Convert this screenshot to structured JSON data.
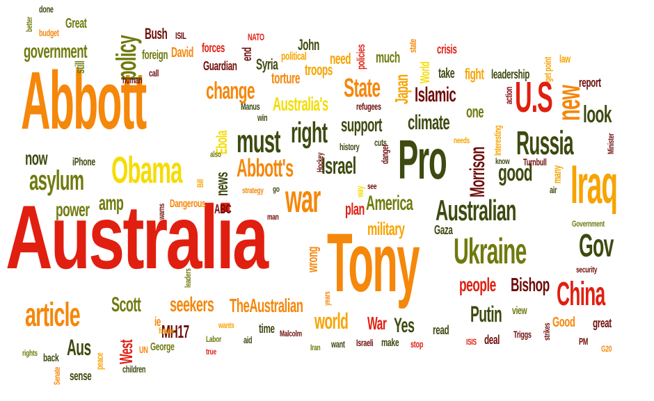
{
  "colors": {
    "red": "#e01f10",
    "dark_red": "#8a0a10",
    "maroon": "#6e0d0a",
    "orange": "#f5870a",
    "yellow_orange": "#f7a300",
    "yellow": "#f5dc00",
    "olive": "#6f7a0e",
    "dark_olive": "#3d4a10",
    "background": "#ffffff"
  },
  "words": [
    {
      "text": "Australia",
      "color": "red"
    },
    {
      "text": "Abbott",
      "color": "orange"
    },
    {
      "text": "Tony",
      "color": "orange"
    },
    {
      "text": "Pro",
      "color": "dark_olive"
    },
    {
      "text": "Ukraine",
      "color": "olive"
    },
    {
      "text": "Iraq",
      "color": "yellow_orange"
    },
    {
      "text": "Obama",
      "color": "yellow"
    },
    {
      "text": "war",
      "color": "orange"
    },
    {
      "text": "Australian",
      "color": "dark_olive"
    },
    {
      "text": "Russia",
      "color": "dark_olive"
    },
    {
      "text": "must",
      "color": "dark_olive"
    },
    {
      "text": "right",
      "color": "dark_olive"
    },
    {
      "text": "policy",
      "color": "olive"
    },
    {
      "text": "U.S",
      "color": "red"
    },
    {
      "text": "new",
      "color": "orange"
    },
    {
      "text": "Gov",
      "color": "dark_olive"
    },
    {
      "text": "China",
      "color": "red"
    },
    {
      "text": "article",
      "color": "orange"
    },
    {
      "text": "Israel",
      "color": "dark_olive"
    },
    {
      "text": "Abbott's",
      "color": "orange"
    },
    {
      "text": "change",
      "color": "orange"
    },
    {
      "text": "State",
      "color": "orange"
    },
    {
      "text": "asylum",
      "color": "olive"
    },
    {
      "text": "Morrison",
      "color": "maroon"
    },
    {
      "text": "good",
      "color": "dark_olive"
    },
    {
      "text": "climate",
      "color": "dark_olive"
    },
    {
      "text": "Islamic",
      "color": "maroon"
    },
    {
      "text": "America",
      "color": "olive"
    },
    {
      "text": "military",
      "color": "yellow_orange"
    },
    {
      "text": "Australia's",
      "color": "yellow"
    },
    {
      "text": "support",
      "color": "dark_olive"
    },
    {
      "text": "government",
      "color": "olive"
    },
    {
      "text": "Scott",
      "color": "olive"
    },
    {
      "text": "seekers",
      "color": "orange"
    },
    {
      "text": "TheAustralian",
      "color": "orange"
    },
    {
      "text": "world",
      "color": "yellow_orange"
    },
    {
      "text": "people",
      "color": "red"
    },
    {
      "text": "Bishop",
      "color": "maroon"
    },
    {
      "text": "Putin",
      "color": "dark_olive"
    },
    {
      "text": "look",
      "color": "dark_olive"
    },
    {
      "text": "power",
      "color": "olive"
    },
    {
      "text": "amp",
      "color": "olive"
    },
    {
      "text": "now",
      "color": "dark_olive"
    },
    {
      "text": "Aus",
      "color": "dark_olive"
    },
    {
      "text": "West",
      "color": "red"
    },
    {
      "text": "MH17",
      "color": "maroon"
    },
    {
      "text": "War",
      "color": "red"
    },
    {
      "text": "Yes",
      "color": "dark_olive"
    },
    {
      "text": "plan",
      "color": "red"
    },
    {
      "text": "Japan",
      "color": "yellow_orange"
    },
    {
      "text": "one",
      "color": "olive"
    },
    {
      "text": "fight",
      "color": "yellow_orange"
    },
    {
      "text": "Ebola",
      "color": "yellow"
    },
    {
      "text": "news",
      "color": "dark_olive"
    },
    {
      "text": "Bush",
      "color": "maroon"
    },
    {
      "text": "Great",
      "color": "olive"
    },
    {
      "text": "David",
      "color": "orange"
    },
    {
      "text": "John",
      "color": "dark_olive"
    },
    {
      "text": "Syria",
      "color": "dark_olive"
    },
    {
      "text": "torture",
      "color": "orange"
    },
    {
      "text": "troops",
      "color": "yellow_orange"
    },
    {
      "text": "need",
      "color": "yellow_orange"
    },
    {
      "text": "much",
      "color": "olive"
    },
    {
      "text": "crisis",
      "color": "red"
    },
    {
      "text": "take",
      "color": "dark_olive"
    },
    {
      "text": "leadership",
      "color": "dark_olive"
    },
    {
      "text": "report",
      "color": "maroon"
    },
    {
      "text": "still",
      "color": "olive"
    },
    {
      "text": "foreign",
      "color": "olive"
    },
    {
      "text": "Guardian",
      "color": "maroon"
    },
    {
      "text": "forces",
      "color": "red"
    },
    {
      "text": "end",
      "color": "maroon"
    },
    {
      "text": "political",
      "color": "yellow_orange"
    },
    {
      "text": "policies",
      "color": "red"
    },
    {
      "text": "state",
      "color": "orange"
    },
    {
      "text": "law",
      "color": "yellow_orange"
    },
    {
      "text": "get point",
      "color": "yellow_orange"
    },
    {
      "text": "World",
      "color": "yellow"
    },
    {
      "text": "action",
      "color": "dark_red"
    },
    {
      "text": "human",
      "color": "maroon"
    },
    {
      "text": "call",
      "color": "maroon"
    },
    {
      "text": "better",
      "color": "olive"
    },
    {
      "text": "budget",
      "color": "orange"
    },
    {
      "text": "done",
      "color": "dark_olive"
    },
    {
      "text": "ISIL",
      "color": "maroon"
    },
    {
      "text": "NATO",
      "color": "red"
    },
    {
      "text": "Manus",
      "color": "dark_olive"
    },
    {
      "text": "win",
      "color": "dark_olive"
    },
    {
      "text": "refugees",
      "color": "maroon"
    },
    {
      "text": "history",
      "color": "dark_olive"
    },
    {
      "text": "cuts",
      "color": "dark_olive"
    },
    {
      "text": "danger",
      "color": "maroon"
    },
    {
      "text": "Hockey",
      "color": "maroon"
    },
    {
      "text": "way",
      "color": "yellow"
    },
    {
      "text": "see",
      "color": "maroon"
    },
    {
      "text": "strategy",
      "color": "orange"
    },
    {
      "text": "go",
      "color": "dark_olive"
    },
    {
      "text": "Interesting",
      "color": "yellow_orange"
    },
    {
      "text": "needs",
      "color": "yellow_orange"
    },
    {
      "text": "know",
      "color": "dark_olive"
    },
    {
      "text": "many",
      "color": "yellow_orange"
    },
    {
      "text": "air",
      "color": "dark_olive"
    },
    {
      "text": "Turnbull",
      "color": "maroon"
    },
    {
      "text": "Minister",
      "color": "maroon"
    },
    {
      "text": "iPhone",
      "color": "dark_olive"
    },
    {
      "text": "also",
      "color": "olive"
    },
    {
      "text": "Bill",
      "color": "yellow_orange"
    },
    {
      "text": "warns",
      "color": "maroon"
    },
    {
      "text": "Dangerous",
      "color": "orange"
    },
    {
      "text": "ABC",
      "color": "maroon"
    },
    {
      "text": "man",
      "color": "maroon"
    },
    {
      "text": "wrong",
      "color": "orange"
    },
    {
      "text": "Gaza",
      "color": "dark_olive"
    },
    {
      "text": "Government",
      "color": "olive"
    },
    {
      "text": "security",
      "color": "maroon"
    },
    {
      "text": "leaders",
      "color": "olive"
    },
    {
      "text": "ie",
      "color": "orange"
    },
    {
      "text": "future",
      "color": "yellow_orange"
    },
    {
      "text": "UN",
      "color": "orange"
    },
    {
      "text": "George",
      "color": "olive"
    },
    {
      "text": "Labor",
      "color": "olive"
    },
    {
      "text": "true",
      "color": "red"
    },
    {
      "text": "wants",
      "color": "yellow_orange"
    },
    {
      "text": "aid",
      "color": "dark_olive"
    },
    {
      "text": "time",
      "color": "dark_olive"
    },
    {
      "text": "Malcolm",
      "color": "maroon"
    },
    {
      "text": "years",
      "color": "orange"
    },
    {
      "text": "Iran",
      "color": "olive"
    },
    {
      "text": "want",
      "color": "dark_olive"
    },
    {
      "text": "Israeli",
      "color": "maroon"
    },
    {
      "text": "make",
      "color": "dark_olive"
    },
    {
      "text": "stop",
      "color": "red"
    },
    {
      "text": "read",
      "color": "dark_olive"
    },
    {
      "text": "ISIS",
      "color": "red"
    },
    {
      "text": "deal",
      "color": "maroon"
    },
    {
      "text": "view",
      "color": "olive"
    },
    {
      "text": "Triggs",
      "color": "maroon"
    },
    {
      "text": "strikes",
      "color": "maroon"
    },
    {
      "text": "Good",
      "color": "orange"
    },
    {
      "text": "great",
      "color": "maroon"
    },
    {
      "text": "PM",
      "color": "maroon"
    },
    {
      "text": "G20",
      "color": "orange"
    },
    {
      "text": "rights",
      "color": "olive"
    },
    {
      "text": "back",
      "color": "dark_olive"
    },
    {
      "text": "peace",
      "color": "yellow_orange"
    },
    {
      "text": "Senate",
      "color": "orange"
    },
    {
      "text": "sense",
      "color": "dark_olive"
    },
    {
      "text": "children",
      "color": "dark_olive"
    }
  ]
}
